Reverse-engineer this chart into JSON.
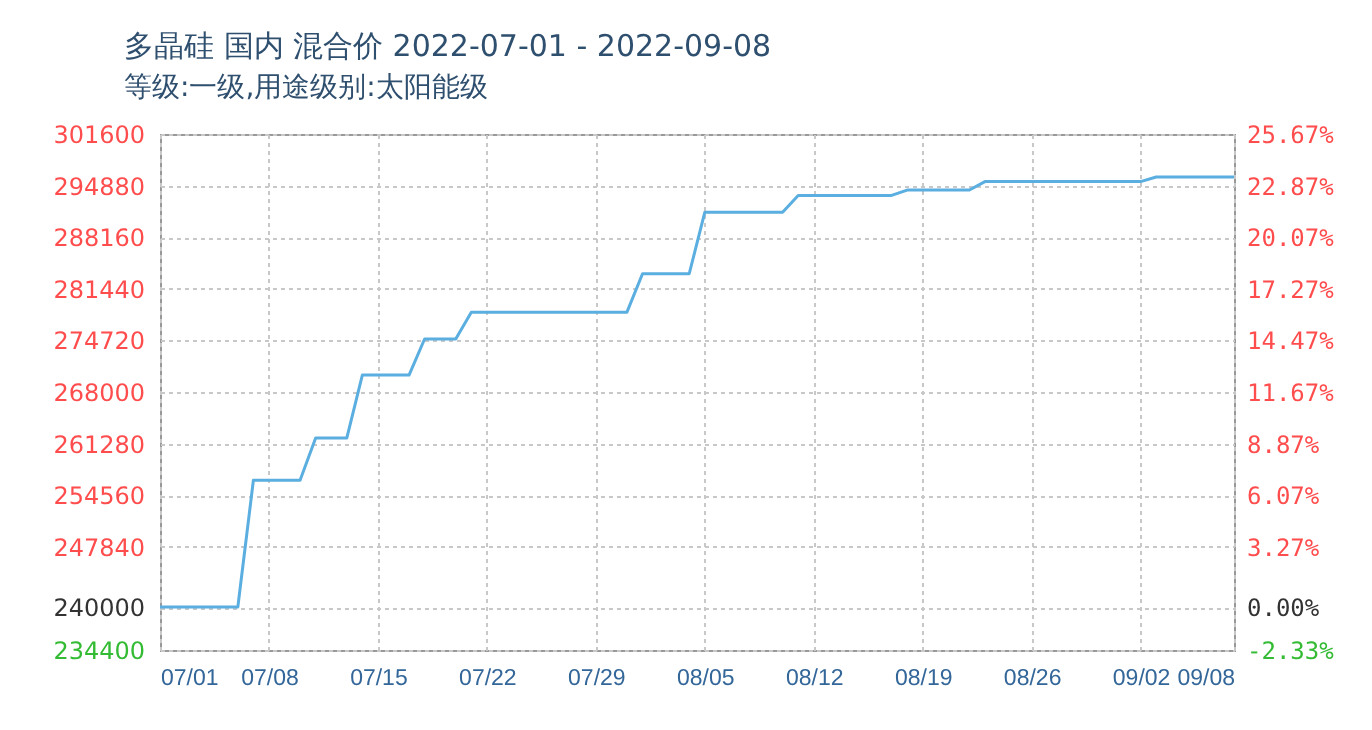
{
  "chart_data": {
    "type": "line",
    "title": "多晶硅 国内 混合价 2022-07-01 - 2022-09-08",
    "subtitle": "等级:一级,用途级别:太阳能级",
    "x": [
      "2022-07-01",
      "2022-07-06",
      "2022-07-07",
      "2022-07-10",
      "2022-07-11",
      "2022-07-13",
      "2022-07-14",
      "2022-07-17",
      "2022-07-18",
      "2022-07-20",
      "2022-07-21",
      "2022-07-31",
      "2022-08-01",
      "2022-08-04",
      "2022-08-05",
      "2022-08-10",
      "2022-08-11",
      "2022-08-17",
      "2022-08-18",
      "2022-08-22",
      "2022-08-23",
      "2022-09-02",
      "2022-09-03",
      "2022-09-08"
    ],
    "series": [
      {
        "color": "#5aaee0",
        "values": [
          240000,
          240000,
          256500,
          256500,
          262000,
          262000,
          270200,
          270200,
          274900,
          274900,
          278400,
          278400,
          283400,
          283400,
          291400,
          291400,
          293600,
          293600,
          294300,
          294300,
          295400,
          295400,
          296000,
          296000
        ]
      }
    ],
    "xlim": [
      "2022-07-01",
      "2022-09-08"
    ],
    "xticks": [
      {
        "value": "2022-07-01",
        "label": "07/01"
      },
      {
        "value": "2022-07-08",
        "label": "07/08"
      },
      {
        "value": "2022-07-15",
        "label": "07/15"
      },
      {
        "value": "2022-07-22",
        "label": "07/22"
      },
      {
        "value": "2022-07-29",
        "label": "07/29"
      },
      {
        "value": "2022-08-05",
        "label": "08/05"
      },
      {
        "value": "2022-08-12",
        "label": "08/12"
      },
      {
        "value": "2022-08-19",
        "label": "08/19"
      },
      {
        "value": "2022-08-26",
        "label": "08/26"
      },
      {
        "value": "2022-09-02",
        "label": "09/02"
      },
      {
        "value": "2022-09-08",
        "label": "09/08"
      }
    ],
    "ylim": [
      234400,
      301600
    ],
    "yticks": [
      234400,
      240000,
      247840,
      254560,
      261280,
      268000,
      274720,
      281440,
      288160,
      294880,
      301600
    ],
    "y2lim": [
      -2.33,
      25.67
    ],
    "y2ticks": [
      {
        "value": -2.33,
        "label": "-2.33%"
      },
      {
        "value": 0,
        "label": "0.00%"
      },
      {
        "value": 3.27,
        "label": "3.27%"
      },
      {
        "value": 6.07,
        "label": "6.07%"
      },
      {
        "value": 8.87,
        "label": "8.87%"
      },
      {
        "value": 11.67,
        "label": "11.67%"
      },
      {
        "value": 14.47,
        "label": "14.47%"
      },
      {
        "value": 17.27,
        "label": "17.27%"
      },
      {
        "value": 20.07,
        "label": "20.07%"
      },
      {
        "value": 22.87,
        "label": "22.87%"
      },
      {
        "value": 25.67,
        "label": "25.67%"
      }
    ],
    "grid": true,
    "line_style": "solid"
  }
}
